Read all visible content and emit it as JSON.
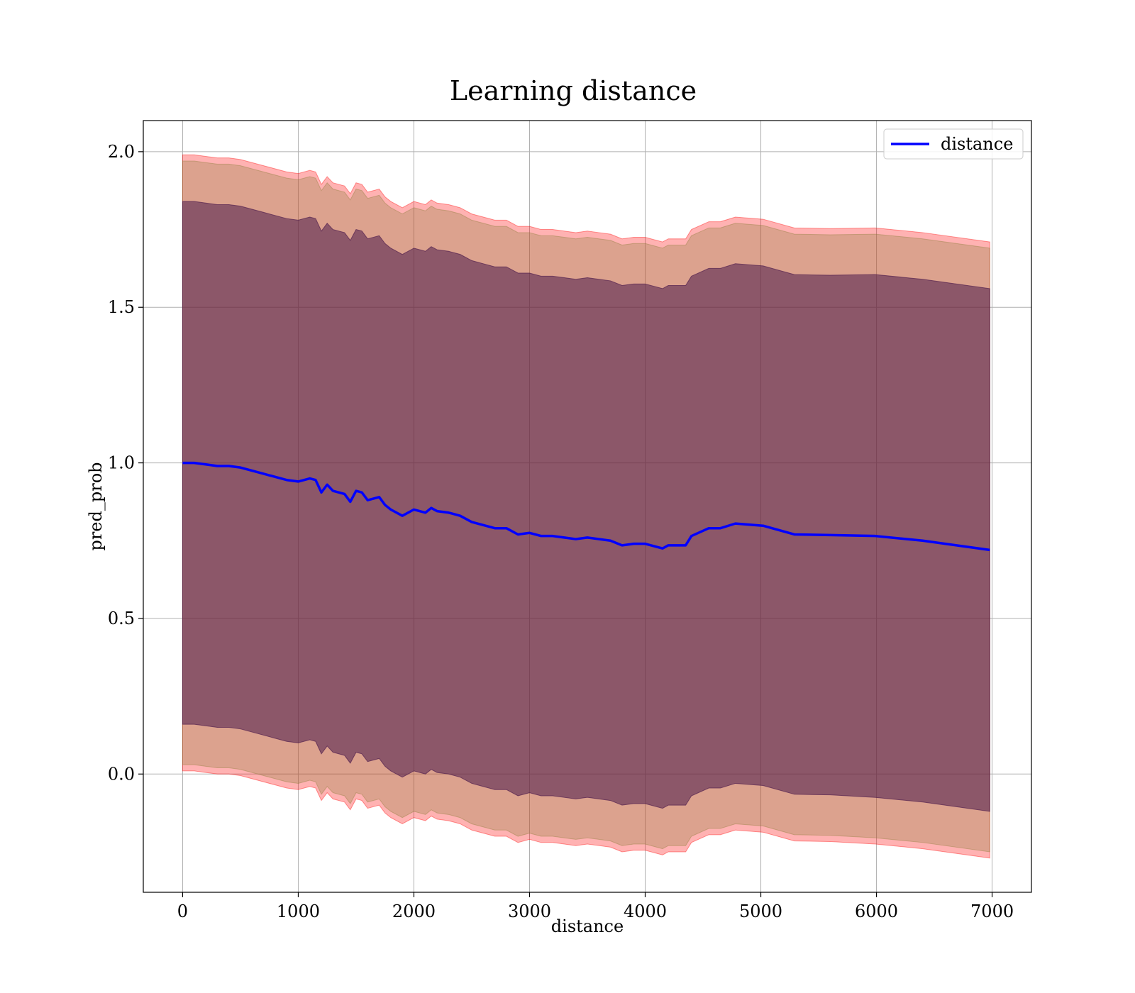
{
  "chart_data": {
    "type": "line",
    "title": "Learning distance",
    "xlabel": "distance",
    "ylabel": "pred_prob",
    "xlim": [
      -340,
      7340
    ],
    "ylim": [
      -0.38,
      2.1
    ],
    "xticks": [
      0,
      1000,
      2000,
      3000,
      4000,
      5000,
      6000,
      7000
    ],
    "xtick_labels": [
      "0",
      "1000",
      "2000",
      "3000",
      "4000",
      "5000",
      "6000",
      "7000"
    ],
    "yticks": [
      0.0,
      0.5,
      1.0,
      1.5,
      2.0
    ],
    "ytick_labels": [
      "0.0",
      "0.5",
      "1.0",
      "1.5",
      "2.0"
    ],
    "grid": true,
    "legend": {
      "placement": "top-right",
      "entries": [
        "distance"
      ]
    },
    "x": [
      0,
      100,
      200,
      300,
      400,
      500,
      600,
      700,
      800,
      900,
      1000,
      1100,
      1150,
      1200,
      1250,
      1300,
      1400,
      1450,
      1500,
      1550,
      1600,
      1700,
      1750,
      1800,
      1900,
      2000,
      2100,
      2150,
      2200,
      2300,
      2400,
      2500,
      2600,
      2700,
      2800,
      2900,
      3000,
      3100,
      3200,
      3300,
      3400,
      3500,
      3600,
      3700,
      3800,
      3900,
      4000,
      4150,
      4200,
      4350,
      4400,
      4550,
      4650,
      4780,
      5020,
      5290,
      5600,
      5990,
      6400,
      6980
    ],
    "series": [
      {
        "name": "distance",
        "color": "#0000ff",
        "values": [
          1.0,
          1.0,
          0.995,
          0.99,
          0.99,
          0.985,
          0.975,
          0.965,
          0.955,
          0.945,
          0.94,
          0.95,
          0.945,
          0.905,
          0.93,
          0.91,
          0.9,
          0.875,
          0.91,
          0.905,
          0.88,
          0.89,
          0.865,
          0.85,
          0.83,
          0.85,
          0.84,
          0.855,
          0.845,
          0.84,
          0.83,
          0.81,
          0.8,
          0.79,
          0.79,
          0.77,
          0.775,
          0.765,
          0.765,
          0.76,
          0.755,
          0.76,
          0.755,
          0.75,
          0.735,
          0.74,
          0.74,
          0.725,
          0.735,
          0.735,
          0.765,
          0.79,
          0.79,
          0.805,
          0.798,
          0.77,
          0.768,
          0.765,
          0.75,
          0.72
        ]
      }
    ],
    "bands": [
      {
        "half_width": [
          0.99,
          0.99,
          0.99,
          0.99,
          0.99,
          0.99,
          0.99,
          0.99,
          0.99,
          0.99,
          0.99,
          0.99,
          0.99,
          0.99,
          0.99,
          0.99,
          0.99,
          0.99,
          0.99,
          0.99,
          0.99,
          0.99,
          0.99,
          0.99,
          0.99,
          0.99,
          0.99,
          0.99,
          0.99,
          0.99,
          0.99,
          0.99,
          0.99,
          0.99,
          0.99,
          0.99,
          0.985,
          0.985,
          0.985,
          0.985,
          0.985,
          0.985,
          0.985,
          0.985,
          0.985,
          0.985,
          0.985,
          0.985,
          0.985,
          0.985,
          0.985,
          0.985,
          0.985,
          0.985,
          0.985,
          0.985,
          0.985,
          0.99,
          0.99,
          0.99
        ],
        "color": "#ff0000",
        "opacity": 0.3
      },
      {
        "half_width": [
          0.97,
          0.97,
          0.97,
          0.97,
          0.97,
          0.97,
          0.97,
          0.97,
          0.97,
          0.97,
          0.97,
          0.97,
          0.97,
          0.97,
          0.97,
          0.97,
          0.97,
          0.97,
          0.97,
          0.97,
          0.97,
          0.97,
          0.97,
          0.97,
          0.97,
          0.97,
          0.97,
          0.97,
          0.97,
          0.97,
          0.97,
          0.97,
          0.97,
          0.97,
          0.97,
          0.97,
          0.965,
          0.965,
          0.965,
          0.965,
          0.965,
          0.965,
          0.965,
          0.965,
          0.965,
          0.965,
          0.965,
          0.965,
          0.965,
          0.965,
          0.965,
          0.965,
          0.965,
          0.965,
          0.965,
          0.965,
          0.965,
          0.97,
          0.97,
          0.97
        ],
        "color": "#8b7d3a",
        "opacity": 0.3
      },
      {
        "half_width": [
          0.84,
          0.84,
          0.84,
          0.84,
          0.84,
          0.84,
          0.84,
          0.84,
          0.84,
          0.84,
          0.84,
          0.84,
          0.84,
          0.84,
          0.84,
          0.84,
          0.84,
          0.84,
          0.84,
          0.84,
          0.84,
          0.84,
          0.84,
          0.84,
          0.84,
          0.84,
          0.84,
          0.84,
          0.84,
          0.84,
          0.84,
          0.84,
          0.84,
          0.84,
          0.84,
          0.84,
          0.835,
          0.835,
          0.835,
          0.835,
          0.835,
          0.835,
          0.835,
          0.835,
          0.835,
          0.835,
          0.835,
          0.835,
          0.835,
          0.835,
          0.835,
          0.835,
          0.835,
          0.835,
          0.835,
          0.835,
          0.835,
          0.84,
          0.84,
          0.84
        ],
        "color": "#4b1a4b",
        "opacity": 0.55
      }
    ]
  }
}
